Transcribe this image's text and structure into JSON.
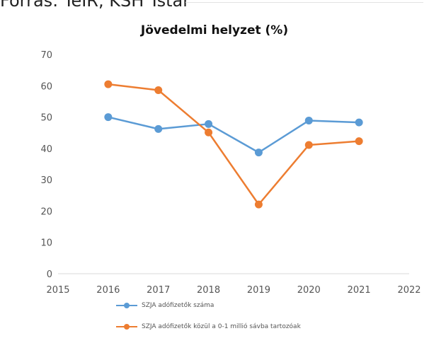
{
  "page_fragment": "Forrás: TeIR, KSH Tstar",
  "chart_data": {
    "type": "line",
    "title": "Jövedelmi helyzet (%)",
    "xlabel": "",
    "ylabel": "",
    "xlim": [
      2015,
      2022
    ],
    "ylim": [
      0,
      70
    ],
    "x_ticks": [
      2015,
      2016,
      2017,
      2018,
      2019,
      2020,
      2021,
      2022
    ],
    "y_ticks": [
      0,
      10,
      20,
      30,
      40,
      50,
      60,
      70
    ],
    "grid": false,
    "legend_position": "bottom",
    "x": [
      2016,
      2017,
      2018,
      2019,
      2020,
      2021
    ],
    "series": [
      {
        "name": "SZJA adófizetők száma",
        "color": "#5b9bd5",
        "values": [
          50,
          46.2,
          47.8,
          38.7,
          48.9,
          48.3
        ]
      },
      {
        "name": "SZJA adófizetők közül a 0-1 millió sávba tartozóak",
        "color": "#ed7d31",
        "values": [
          60.5,
          58.6,
          45.1,
          22.1,
          41.1,
          42.3
        ]
      }
    ]
  }
}
